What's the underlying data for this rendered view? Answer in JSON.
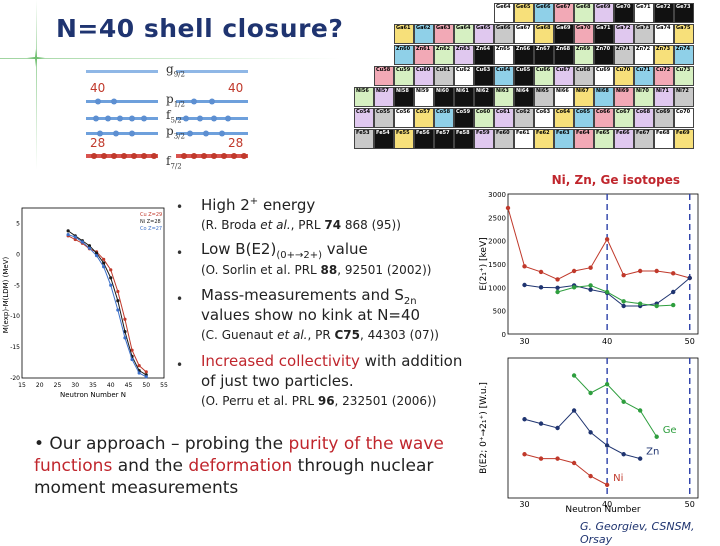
{
  "title": "N=40 shell closure?",
  "shell_diagram": {
    "levels": [
      {
        "name_main": "g",
        "name_sub": "9/2"
      },
      {
        "name_main": "p",
        "name_sub": "1/2"
      },
      {
        "name_main": "f",
        "name_sub": "5/2"
      },
      {
        "name_main": "p",
        "name_sub": "3/2"
      },
      {
        "name_main": "f",
        "name_sub": "7/2"
      }
    ],
    "magic_left_upper": "40",
    "magic_right_upper": "40",
    "magic_left_lower": "28",
    "magic_right_lower": "28"
  },
  "nuclide_chart": {
    "rows": [
      [
        "Ge64",
        "Ge65",
        "Ge66",
        "Ge67",
        "Ge68",
        "Ge69",
        "Ge70",
        "Ge71",
        "Ge72",
        "Ge73",
        "Ge74",
        "Ge75",
        "Ge76",
        "Ge77"
      ],
      [
        "Ga61",
        "Ga62",
        "Ga63",
        "Ga64",
        "Ga65",
        "Ga66",
        "Ga67",
        "Ga68",
        "Ga69",
        "Ga70",
        "Ga71",
        "Ga72",
        "Ga73",
        "Ga74",
        "Ga75",
        "Ga76"
      ],
      [
        "Zn60",
        "Zn61",
        "Zn62",
        "Zn63",
        "Zn64",
        "Zn65",
        "Zn66",
        "Zn67",
        "Zn68",
        "Zn69",
        "Zn70",
        "Zn71",
        "Zn72",
        "Zn73",
        "Zn74",
        "Zn75"
      ],
      [
        "Cu58",
        "Cu59",
        "Cu60",
        "Cu61",
        "Cu62",
        "Cu63",
        "Cu64",
        "Cu65",
        "Cu66",
        "Cu67",
        "Cu68",
        "Cu69",
        "Cu70",
        "Cu71",
        "Cu72",
        "Cu73",
        "Cu74"
      ],
      [
        "Ni56",
        "Ni57",
        "Ni58",
        "Ni59",
        "Ni60",
        "Ni61",
        "Ni62",
        "Ni63",
        "Ni64",
        "Ni65",
        "Ni66",
        "Ni67",
        "Ni68",
        "Ni69",
        "Ni70",
        "Ni71",
        "Ni72"
      ],
      [
        "Co54",
        "Co55",
        "Co56",
        "Co57",
        "Co58",
        "Co59",
        "Co60",
        "Co61",
        "Co62",
        "Co63",
        "Co64",
        "Co65",
        "Co66",
        "Co67",
        "Co68",
        "Co69",
        "Co70"
      ],
      [
        "Fe53",
        "Fe54",
        "Fe55",
        "Fe56",
        "Fe57",
        "Fe58",
        "Fe59",
        "Fe60",
        "Fe61",
        "Fe62",
        "Fe63",
        "Fe64",
        "Fe65",
        "Fe66",
        "Fe67",
        "Fe68",
        "Fe69"
      ]
    ]
  },
  "bullets": [
    {
      "pre": "High 2",
      "sup": "+",
      "post": " energy",
      "ref_pre": "(R. Broda ",
      "ref_em": "et al.",
      "ref_mid": ", PRL ",
      "ref_bold": "74",
      "ref_post": " 868 (95))"
    },
    {
      "pre": "Low B(E2)",
      "sub": "(0+→2+)",
      "post": " value",
      "ref_pre": "(O. Sorlin et al. PRL ",
      "ref_bold": "88",
      "ref_post": ", 92501 (2002))"
    },
    {
      "line1_pre": "Mass-measurements and S",
      "line1_sub": "2n",
      "line2": "values show no kink at N=40",
      "ref_pre": "(C. Guenaut ",
      "ref_em": "et al.",
      "ref_mid": ", PR ",
      "ref_bold": "C75",
      "ref_post": ", 44303 (07))"
    },
    {
      "line1_red": "Increased collectivity",
      "line1_rest": " with addition",
      "line2": "of just two particles.",
      "ref_pre": "(O. Perru et al. PRL ",
      "ref_bold": "96",
      "ref_post": ", 232501 (2006))"
    }
  ],
  "bottom_text": {
    "part1": "• Our approach – probing the ",
    "purity": "purity of the wave functions",
    "part2": " and the ",
    "deformation": "deformation",
    "part3": " through nuclear moment measurements"
  },
  "credit": "G. Georgiev, CSNSM, Orsay",
  "chart_data": [
    {
      "type": "line",
      "title": "",
      "xlabel": "Neutron Number N",
      "ylabel": "M(exp)-M(LDM) (MeV)",
      "xlim": [
        15,
        55
      ],
      "ylim": [
        -20,
        7.5
      ],
      "x_ticks": [
        "15",
        "20",
        "25",
        "30",
        "35",
        "40",
        "45",
        "50",
        "55"
      ],
      "y_ticks": [
        "-20",
        "-15",
        "-10",
        "-5",
        "0",
        "5"
      ],
      "legend": [
        "Cu Z=29",
        "Ni Z=28",
        "Co Z=27"
      ],
      "series": [
        {
          "name": "Cu Z=29",
          "x": [
            28,
            30,
            32,
            34,
            36,
            38,
            40,
            42,
            44,
            46,
            48,
            50
          ],
          "y": [
            3.0,
            2.4,
            1.8,
            0.9,
            0.4,
            -0.8,
            -2.5,
            -6.0,
            -10.5,
            -15.5,
            -18.0,
            -19.0
          ]
        },
        {
          "name": "Ni Z=28",
          "x": [
            28,
            30,
            32,
            34,
            36,
            38,
            40,
            42,
            44,
            46,
            48,
            50
          ],
          "y": [
            3.8,
            3.0,
            2.2,
            1.4,
            0.2,
            -1.4,
            -3.8,
            -7.5,
            -12.5,
            -16.5,
            -18.8,
            -19.5
          ]
        },
        {
          "name": "Co Z=27",
          "x": [
            28,
            30,
            32,
            34,
            36,
            38,
            40,
            42,
            44,
            46,
            48,
            50
          ],
          "y": [
            3.2,
            2.8,
            2.0,
            1.0,
            -0.2,
            -2.0,
            -5.0,
            -9.0,
            -13.5,
            -17.0,
            -19.2,
            -19.8
          ]
        }
      ]
    },
    {
      "type": "line",
      "title": "Ni, Zn, Ge isotopes",
      "xlabel": "",
      "ylabel": "E(2₁⁺) [keV]",
      "xlim": [
        28,
        51
      ],
      "ylim": [
        0,
        3000
      ],
      "y_ticks": [
        "0",
        "500",
        "1000",
        "1500",
        "2000",
        "2500",
        "3000"
      ],
      "x_ticks": [
        "30",
        "40",
        "50"
      ],
      "series": [
        {
          "name": "Ni",
          "x": [
            28,
            30,
            32,
            34,
            36,
            38,
            40,
            42,
            44,
            46,
            48,
            50
          ],
          "y": [
            2700,
            1450,
            1330,
            1170,
            1350,
            1420,
            2030,
            1260,
            1350,
            1350,
            1300,
            1200
          ]
        },
        {
          "name": "Zn",
          "x": [
            30,
            32,
            34,
            36,
            38,
            40,
            42,
            44,
            46,
            48,
            50
          ],
          "y": [
            1050,
            1000,
            990,
            1040,
            950,
            880,
            600,
            600,
            650,
            900,
            1200
          ]
        },
        {
          "name": "Ge",
          "x": [
            34,
            36,
            38,
            40,
            42,
            44,
            46,
            48
          ],
          "y": [
            900,
            1000,
            1040,
            900,
            700,
            650,
            600,
            620
          ]
        }
      ]
    },
    {
      "type": "line",
      "title": "",
      "xlabel": "Neutron Number",
      "ylabel": "B(E2; 0⁺→2₁⁺) [W.u.]",
      "xlim": [
        28,
        51
      ],
      "x_ticks": [
        "30",
        "40",
        "50"
      ],
      "series": [
        {
          "name": "Ge",
          "x": [
            36,
            38,
            40,
            42,
            44,
            46
          ],
          "y": [
            28,
            24,
            26,
            22,
            20,
            14
          ]
        },
        {
          "name": "Zn",
          "x": [
            30,
            32,
            34,
            36,
            38,
            40,
            42,
            44
          ],
          "y": [
            18,
            17,
            16,
            20,
            15,
            12,
            10,
            9
          ]
        },
        {
          "name": "Ni",
          "x": [
            30,
            32,
            34,
            36,
            38,
            40
          ],
          "y": [
            10,
            9,
            9,
            8,
            5,
            3
          ]
        }
      ]
    }
  ]
}
